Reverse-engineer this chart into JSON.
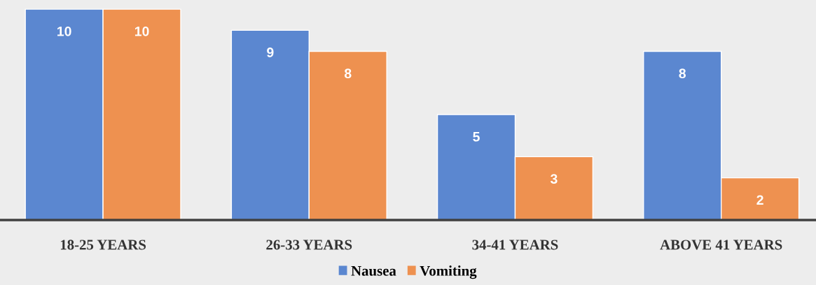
{
  "chart_data": {
    "type": "bar",
    "categories": [
      "18-25 YEARS",
      "26-33 YEARS",
      "34-41 YEARS",
      "ABOVE 41 YEARS"
    ],
    "series": [
      {
        "name": "Nausea",
        "color": "#5b87d0",
        "values": [
          10,
          9,
          5,
          8
        ]
      },
      {
        "name": "Vomiting",
        "color": "#ee9150",
        "values": [
          10,
          8,
          3,
          2
        ]
      }
    ],
    "data_labels": true,
    "legend": "bottom",
    "grid": false
  }
}
